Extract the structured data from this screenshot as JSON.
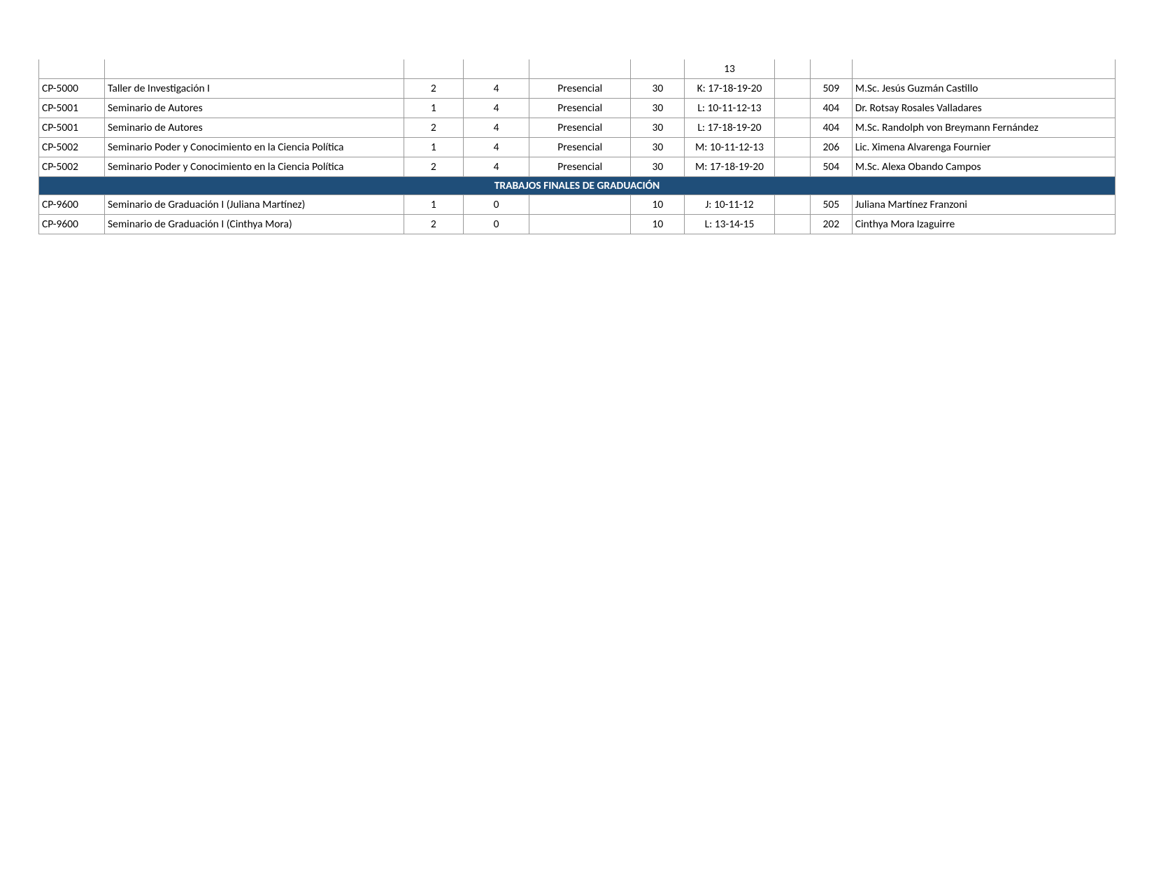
{
  "table": {
    "header_row_partial": {
      "c0": "",
      "c1": "",
      "c2": "",
      "c3": "",
      "c4": "",
      "c5": "",
      "c6": "13",
      "c7": "",
      "c8": "",
      "c9": ""
    },
    "rows_before": [
      {
        "code": "CP-5000",
        "name": "Taller de Investigación I",
        "group": "2",
        "credits": "4",
        "mode": "Presencial",
        "cap": "30",
        "sched": "K: 17-18-19-20",
        "empty": "",
        "room": "509",
        "prof": "M.Sc. Jesús Guzmán Castillo"
      },
      {
        "code": "CP-5001",
        "name": "Seminario de Autores",
        "group": "1",
        "credits": "4",
        "mode": "Presencial",
        "cap": "30",
        "sched": "L: 10-11-12-13",
        "empty": "",
        "room": "404",
        "prof": "Dr. Rotsay Rosales Valladares"
      },
      {
        "code": "CP-5001",
        "name": "Seminario de Autores",
        "group": "2",
        "credits": "4",
        "mode": "Presencial",
        "cap": "30",
        "sched": "L: 17-18-19-20",
        "empty": "",
        "room": "404",
        "prof": "M.Sc. Randolph von Breymann Fernández"
      },
      {
        "code": "CP-5002",
        "name": "Seminario Poder y Conocimiento en la Ciencia Política",
        "group": "1",
        "credits": "4",
        "mode": "Presencial",
        "cap": "30",
        "sched": "M: 10-11-12-13",
        "empty": "",
        "room": "206",
        "prof": "Lic. Ximena Alvarenga Fournier"
      },
      {
        "code": "CP-5002",
        "name": "Seminario Poder y Conocimiento en la Ciencia Política",
        "group": "2",
        "credits": "4",
        "mode": "Presencial",
        "cap": "30",
        "sched": "M: 17-18-19-20",
        "empty": "",
        "room": "504",
        "prof": "M.Sc. Alexa Obando Campos"
      }
    ],
    "section_header": "TRABAJOS FINALES DE GRADUACIÓN",
    "rows_after": [
      {
        "code": "CP-9600",
        "name": "Seminario de Graduación I (Juliana Martínez)",
        "group": "1",
        "credits": "0",
        "mode": "",
        "cap": "10",
        "sched": "J: 10-11-12",
        "empty": "",
        "room": "505",
        "prof": "Juliana Martínez Franzoni"
      },
      {
        "code": "CP-9600",
        "name": "Seminario de Graduación I (Cinthya Mora)",
        "group": "2",
        "credits": "0",
        "mode": "",
        "cap": "10",
        "sched": "L: 13-14-15",
        "empty": "",
        "room": "202",
        "prof": "Cinthya Mora Izaguirre"
      }
    ],
    "column_widths_pct": [
      5.5,
      25,
      5,
      5.5,
      8.5,
      4.5,
      7.5,
      3,
      3.5,
      22
    ],
    "colors": {
      "header_bg": "#1f4e79",
      "header_text": "#ffffff",
      "border": "#999999",
      "text": "#000000",
      "background": "#ffffff"
    },
    "font_size_pt": 11
  }
}
